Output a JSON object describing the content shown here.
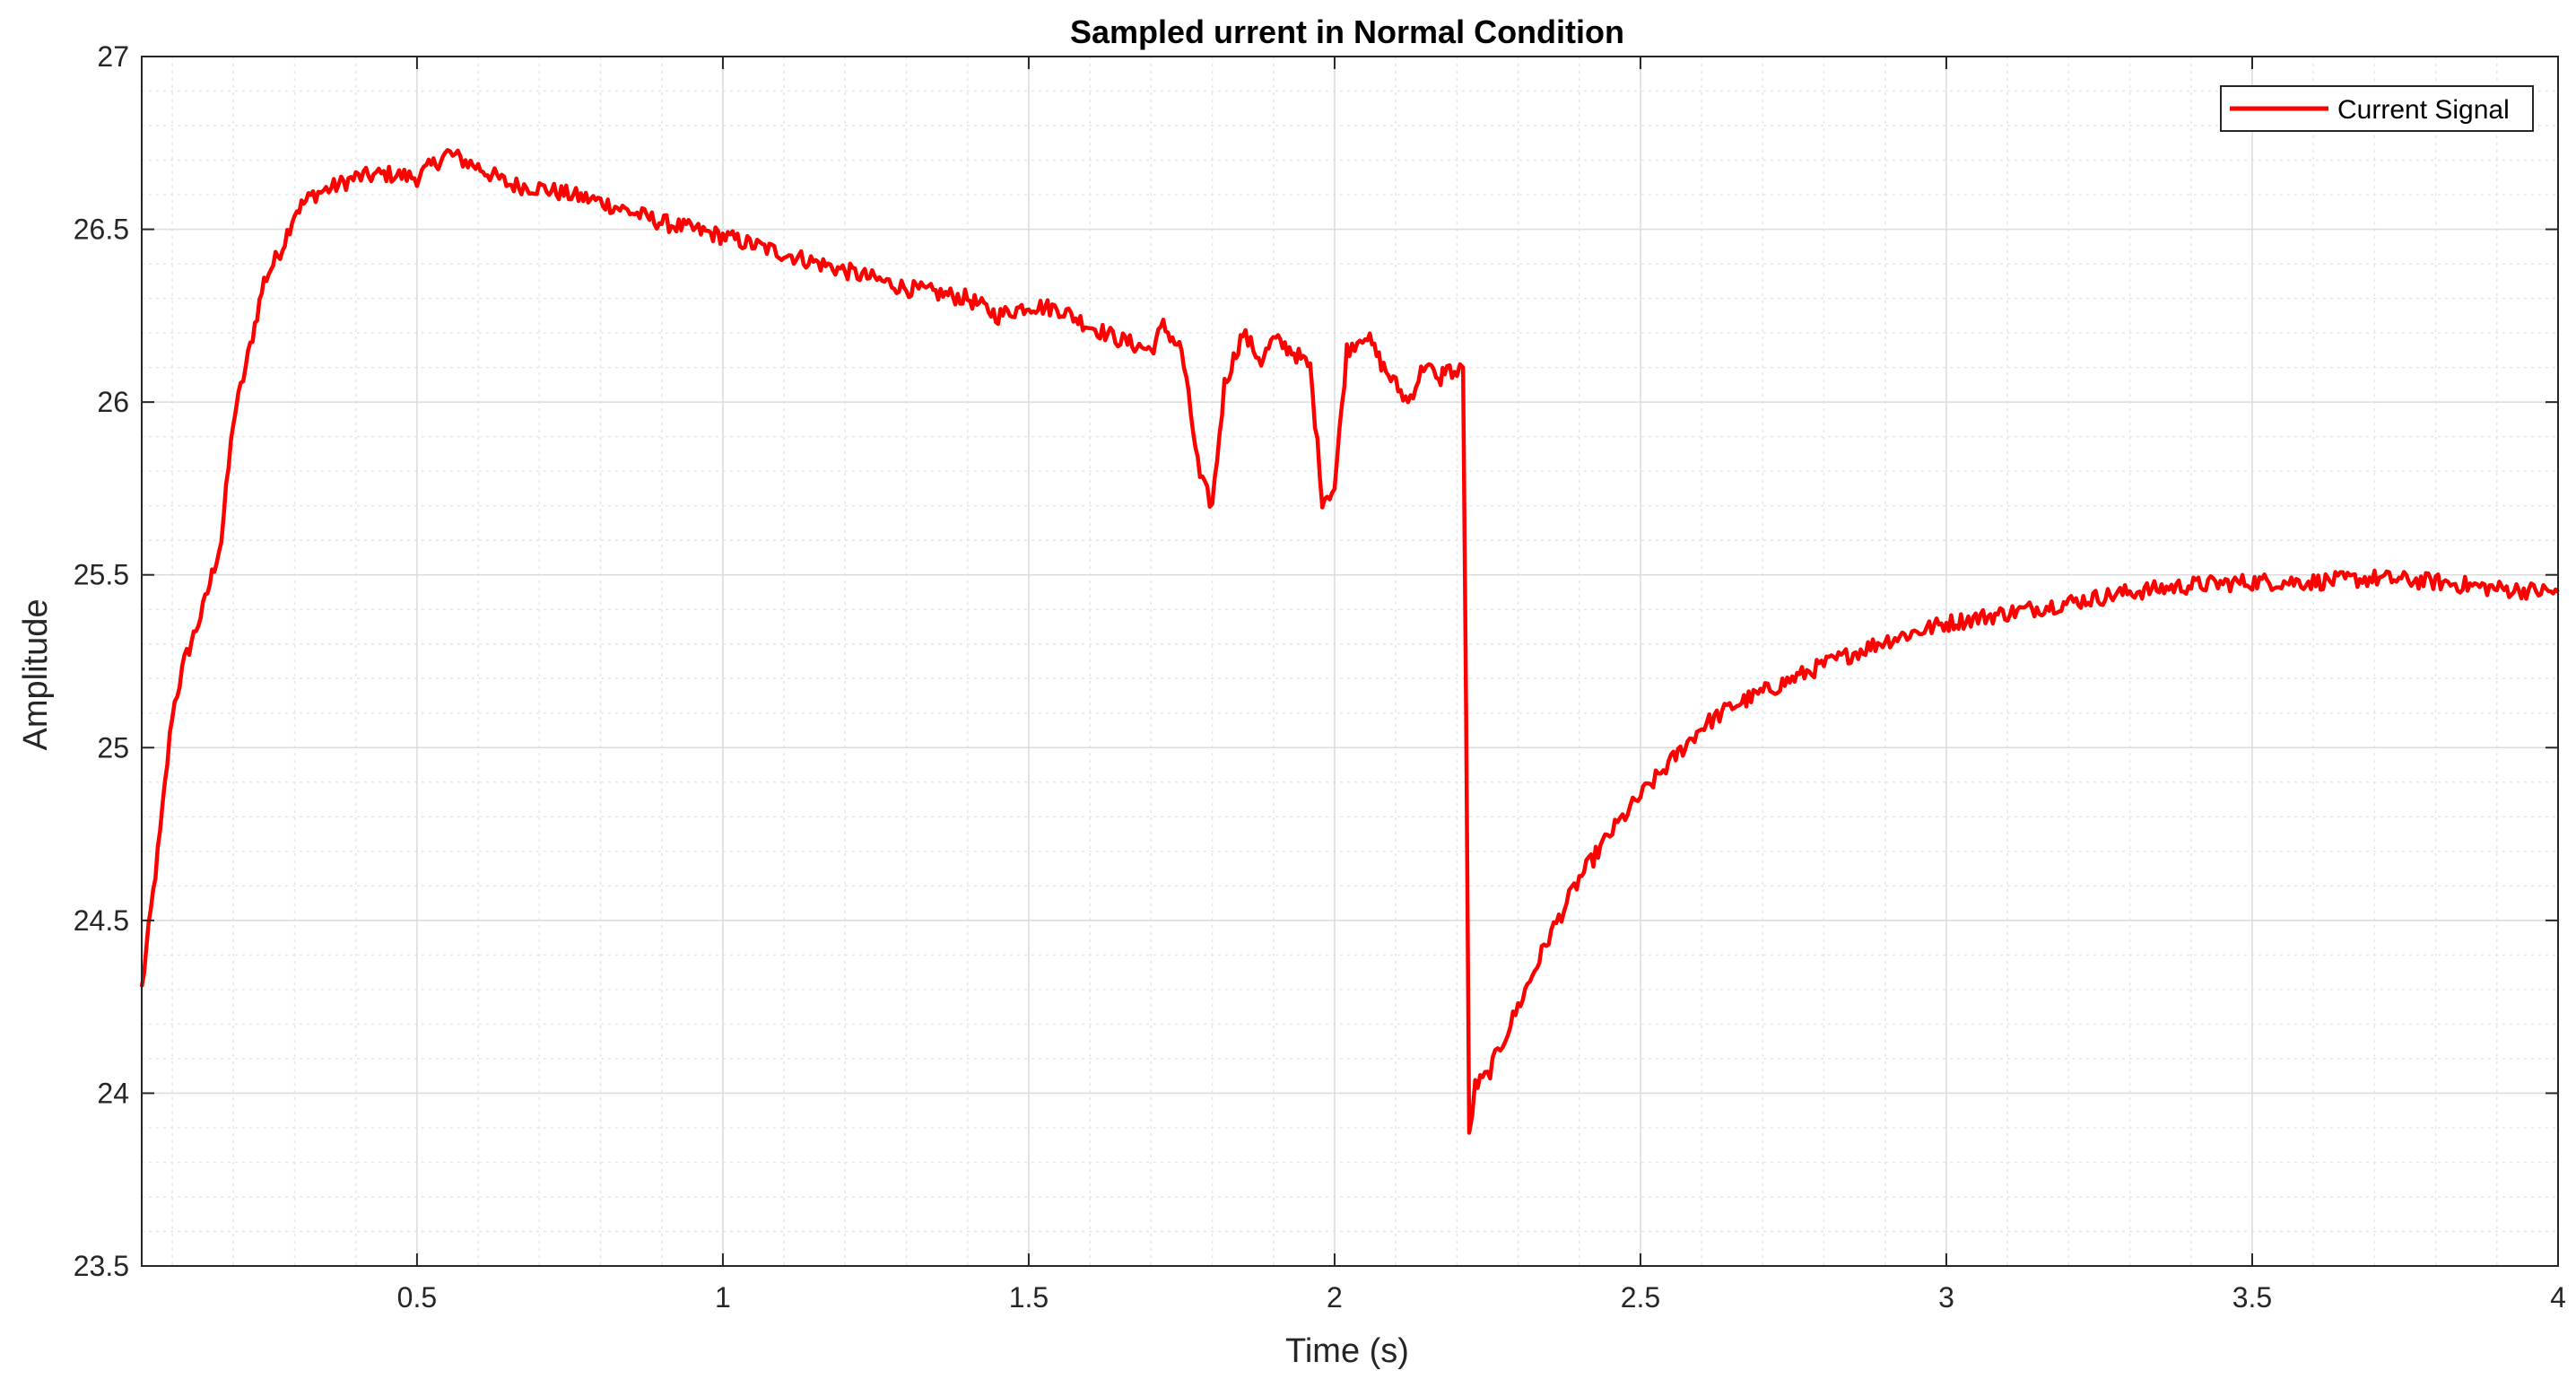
{
  "chart_data": {
    "type": "line",
    "title": "Sampled urrent in Normal Condition",
    "xlabel": "Time (s)",
    "ylabel": "Amplitude",
    "xlim": [
      0.05,
      4.0
    ],
    "ylim": [
      23.5,
      27.0
    ],
    "xticks": [
      0.5,
      1,
      1.5,
      2,
      2.5,
      3,
      3.5,
      4
    ],
    "xtick_labels": [
      "0.5",
      "1",
      "1.5",
      "2",
      "2.5",
      "3",
      "3.5",
      "4"
    ],
    "yticks": [
      23.5,
      24,
      24.5,
      25,
      25.5,
      26,
      26.5,
      27
    ],
    "ytick_labels": [
      "23.5",
      "24",
      "24.5",
      "25",
      "25.5",
      "26",
      "26.5",
      "27"
    ],
    "grid": true,
    "minor_grid": true,
    "legend": "top-right",
    "series": [
      {
        "name": "Current Signal",
        "color": "#ff0000",
        "x": [
          0.05,
          0.08,
          0.1,
          0.12,
          0.15,
          0.18,
          0.2,
          0.22,
          0.25,
          0.28,
          0.3,
          0.33,
          0.36,
          0.4,
          0.45,
          0.5,
          0.55,
          0.6,
          0.65,
          0.7,
          0.8,
          0.9,
          1.0,
          1.1,
          1.2,
          1.3,
          1.4,
          1.45,
          1.5,
          1.55,
          1.6,
          1.65,
          1.7,
          1.72,
          1.75,
          1.78,
          1.8,
          1.82,
          1.85,
          1.88,
          1.9,
          1.93,
          1.96,
          1.98,
          2.0,
          2.02,
          2.05,
          2.08,
          2.1,
          2.12,
          2.15,
          2.17,
          2.18,
          2.2,
          2.21,
          2.215,
          2.22,
          2.23,
          2.25,
          2.3,
          2.35,
          2.4,
          2.45,
          2.5,
          2.55,
          2.6,
          2.65,
          2.7,
          2.8,
          2.9,
          3.0,
          3.1,
          3.2,
          3.3,
          3.4,
          3.5,
          3.6,
          3.7,
          3.8,
          3.9,
          4.0
        ],
        "y": [
          24.3,
          24.75,
          25.1,
          25.25,
          25.4,
          25.6,
          25.95,
          26.1,
          26.35,
          26.45,
          26.55,
          26.6,
          26.62,
          26.65,
          26.66,
          26.65,
          26.72,
          26.68,
          26.63,
          26.62,
          26.58,
          26.52,
          26.48,
          26.43,
          26.38,
          26.33,
          26.3,
          26.25,
          26.28,
          26.27,
          26.22,
          26.18,
          26.15,
          26.22,
          26.15,
          25.78,
          25.7,
          26.05,
          26.2,
          26.12,
          26.18,
          26.15,
          26.1,
          25.72,
          25.75,
          26.15,
          26.2,
          26.1,
          26.05,
          26.0,
          26.12,
          26.05,
          26.1,
          26.08,
          26.1,
          25.1,
          23.88,
          24.02,
          24.05,
          24.25,
          24.45,
          24.62,
          24.75,
          24.86,
          24.96,
          25.06,
          25.12,
          25.16,
          25.24,
          25.31,
          25.36,
          25.39,
          25.42,
          25.45,
          25.47,
          25.48,
          25.48,
          25.49,
          25.48,
          25.46,
          25.45
        ]
      }
    ]
  }
}
